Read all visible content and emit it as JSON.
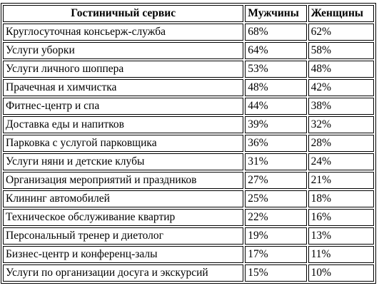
{
  "table": {
    "headers": {
      "service": "Гостиничный  сервис",
      "men": "Мужчины",
      "women": "Женщины"
    },
    "rows": [
      {
        "service": "Круглосуточная консьерж-служба",
        "men": "68%",
        "women": "62%"
      },
      {
        "service": "Услуги уборки",
        "men": "64%",
        "women": "58%"
      },
      {
        "service": "Услуги личного шоппера",
        "men": "53%",
        "women": "48%"
      },
      {
        "service": "Прачечная и химчистка",
        "men": "48%",
        "women": "42%"
      },
      {
        "service": "Фитнес-центр и спа",
        "men": "44%",
        "women": "38%"
      },
      {
        "service": "Доставка еды и напитков",
        "men": "39%",
        "women": "32%"
      },
      {
        "service": "Парковка с услугой парковщика",
        "men": "36%",
        "women": "28%"
      },
      {
        "service": "Услуги няни и детские клубы",
        "men": "31%",
        "women": "24%"
      },
      {
        "service": "Организация мероприятий и праздников",
        "men": "27%",
        "women": "21%"
      },
      {
        "service": "Клининг автомобилей",
        "men": "25%",
        "women": "18%"
      },
      {
        "service": "Техническое обслуживание квартир",
        "men": "22%",
        "women": "16%"
      },
      {
        "service": "Персональный тренер и диетолог",
        "men": "19%",
        "women": "13%"
      },
      {
        "service": "Бизнес-центр и конференц-залы",
        "men": "17%",
        "women": "11%"
      },
      {
        "service": "Услуги по организации досуга и экскурсий",
        "men": "15%",
        "women": "10%"
      }
    ]
  }
}
